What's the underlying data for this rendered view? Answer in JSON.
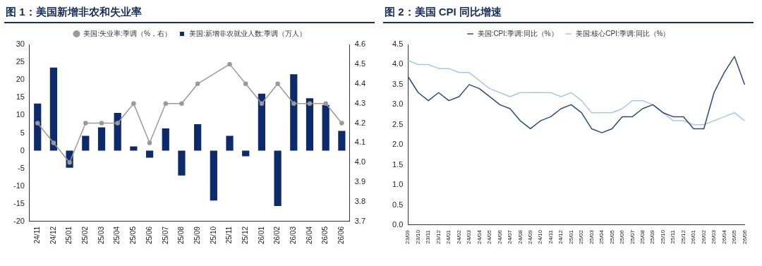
{
  "chart_data": [
    {
      "type": "bar",
      "title": "图 1：美国新增非农和失业率",
      "categories": [
        "24/11",
        "24/12",
        "25/01",
        "25/02",
        "25/03",
        "25/04",
        "25/05",
        "25/06",
        "25/07",
        "25/08",
        "25/09",
        "25/10",
        "25/11",
        "25/12",
        "26/01",
        "26/02",
        "26/03",
        "26/04",
        "26/05",
        "26/06"
      ],
      "series": [
        {
          "name": "美国:新增非农就业人数:季调（万人）",
          "type": "bar",
          "color": "#0d2a6b",
          "values": [
            13.3,
            23.5,
            -4.8,
            4.2,
            6.6,
            10.7,
            1.2,
            -2.0,
            6.3,
            -7.0,
            7.5,
            -14.1,
            4.2,
            -1.6,
            16.1,
            -15.6,
            21.6,
            14.8,
            12.9,
            5.6
          ]
        },
        {
          "name": "美国:失业率:季调（%，右）",
          "type": "line",
          "axis": "y2",
          "color": "#9a9a9a",
          "values": [
            4.2,
            4.1,
            4.0,
            4.2,
            4.2,
            4.2,
            4.3,
            4.1,
            4.3,
            4.3,
            4.4,
            null,
            4.5,
            4.4,
            4.3,
            4.4,
            4.3,
            4.3,
            4.3,
            4.2
          ]
        }
      ],
      "ylim": [
        -20,
        30
      ],
      "yticks": [
        -20,
        -15,
        -10,
        -5,
        0,
        5,
        10,
        15,
        20,
        25,
        30
      ],
      "y2lim": [
        3.7,
        4.6
      ],
      "y2ticks": [
        {
          "value": 3.7,
          "label": "3.7"
        },
        {
          "value": 3.8,
          "label": "3.8"
        },
        {
          "value": 3.9,
          "label": "3.9"
        },
        {
          "value": 4.0,
          "label": "4.0"
        },
        {
          "value": 4.1,
          "label": "4.1"
        },
        {
          "value": 4.2,
          "label": "4.2"
        },
        {
          "value": 4.3,
          "label": "4.3"
        },
        {
          "value": 4.4,
          "label": "4.4"
        },
        {
          "value": 4.5,
          "label": "4.5"
        },
        {
          "value": 4.6,
          "label": "4.6"
        }
      ],
      "grid": false,
      "legend": "top",
      "marker": "circle"
    },
    {
      "type": "line",
      "title": "图 2：美国 CPI 同比增速",
      "categories": [
        "23/09",
        "23/10",
        "23/11",
        "23/12",
        "24/01",
        "24/02",
        "24/03",
        "24/04",
        "24/05",
        "24/06",
        "24/07",
        "24/08",
        "24/09",
        "24/10",
        "24/11",
        "24/12",
        "25/01",
        "25/02",
        "25/03",
        "25/04",
        "25/05",
        "25/06",
        "25/07",
        "25/08",
        "25/09",
        "25/10",
        "25/11",
        "25/12",
        "26/01",
        "26/02",
        "26/03",
        "26/04",
        "26/05",
        "26/06"
      ],
      "series": [
        {
          "name": "美国:CPI:季调:同比（%）",
          "color": "#2c4a7a",
          "values": [
            3.7,
            3.3,
            3.1,
            3.3,
            3.1,
            3.2,
            3.5,
            3.4,
            3.2,
            3.0,
            2.9,
            2.6,
            2.4,
            2.6,
            2.7,
            2.9,
            3.0,
            2.8,
            2.4,
            2.3,
            2.4,
            2.7,
            2.7,
            2.9,
            3.0,
            2.8,
            2.7,
            2.7,
            2.4,
            2.4,
            3.3,
            3.8,
            4.2,
            3.5
          ]
        },
        {
          "name": "美国:核心CPI:季调:同比（%）",
          "color": "#a9c7e6",
          "values": [
            4.1,
            4.0,
            4.0,
            3.9,
            3.9,
            3.8,
            3.8,
            3.6,
            3.4,
            3.3,
            3.2,
            3.3,
            3.3,
            3.3,
            3.3,
            3.2,
            3.3,
            3.1,
            2.8,
            2.8,
            2.8,
            2.9,
            3.1,
            3.1,
            3.0,
            2.8,
            2.6,
            2.6,
            2.5,
            2.5,
            2.6,
            2.7,
            2.8,
            2.6
          ]
        }
      ],
      "ylim": [
        0,
        4.5
      ],
      "yticks": [
        {
          "value": 0,
          "label": "0.0"
        },
        {
          "value": 0.5,
          "label": "0.5"
        },
        {
          "value": 1,
          "label": "1.0"
        },
        {
          "value": 1.5,
          "label": "1.5"
        },
        {
          "value": 2,
          "label": "2.0"
        },
        {
          "value": 2.5,
          "label": "2.5"
        },
        {
          "value": 3,
          "label": "3.0"
        },
        {
          "value": 3.5,
          "label": "3.5"
        },
        {
          "value": 4,
          "label": "4.0"
        },
        {
          "value": 4.5,
          "label": "4.5"
        }
      ],
      "grid": false,
      "legend": "top",
      "marker": "none"
    }
  ]
}
